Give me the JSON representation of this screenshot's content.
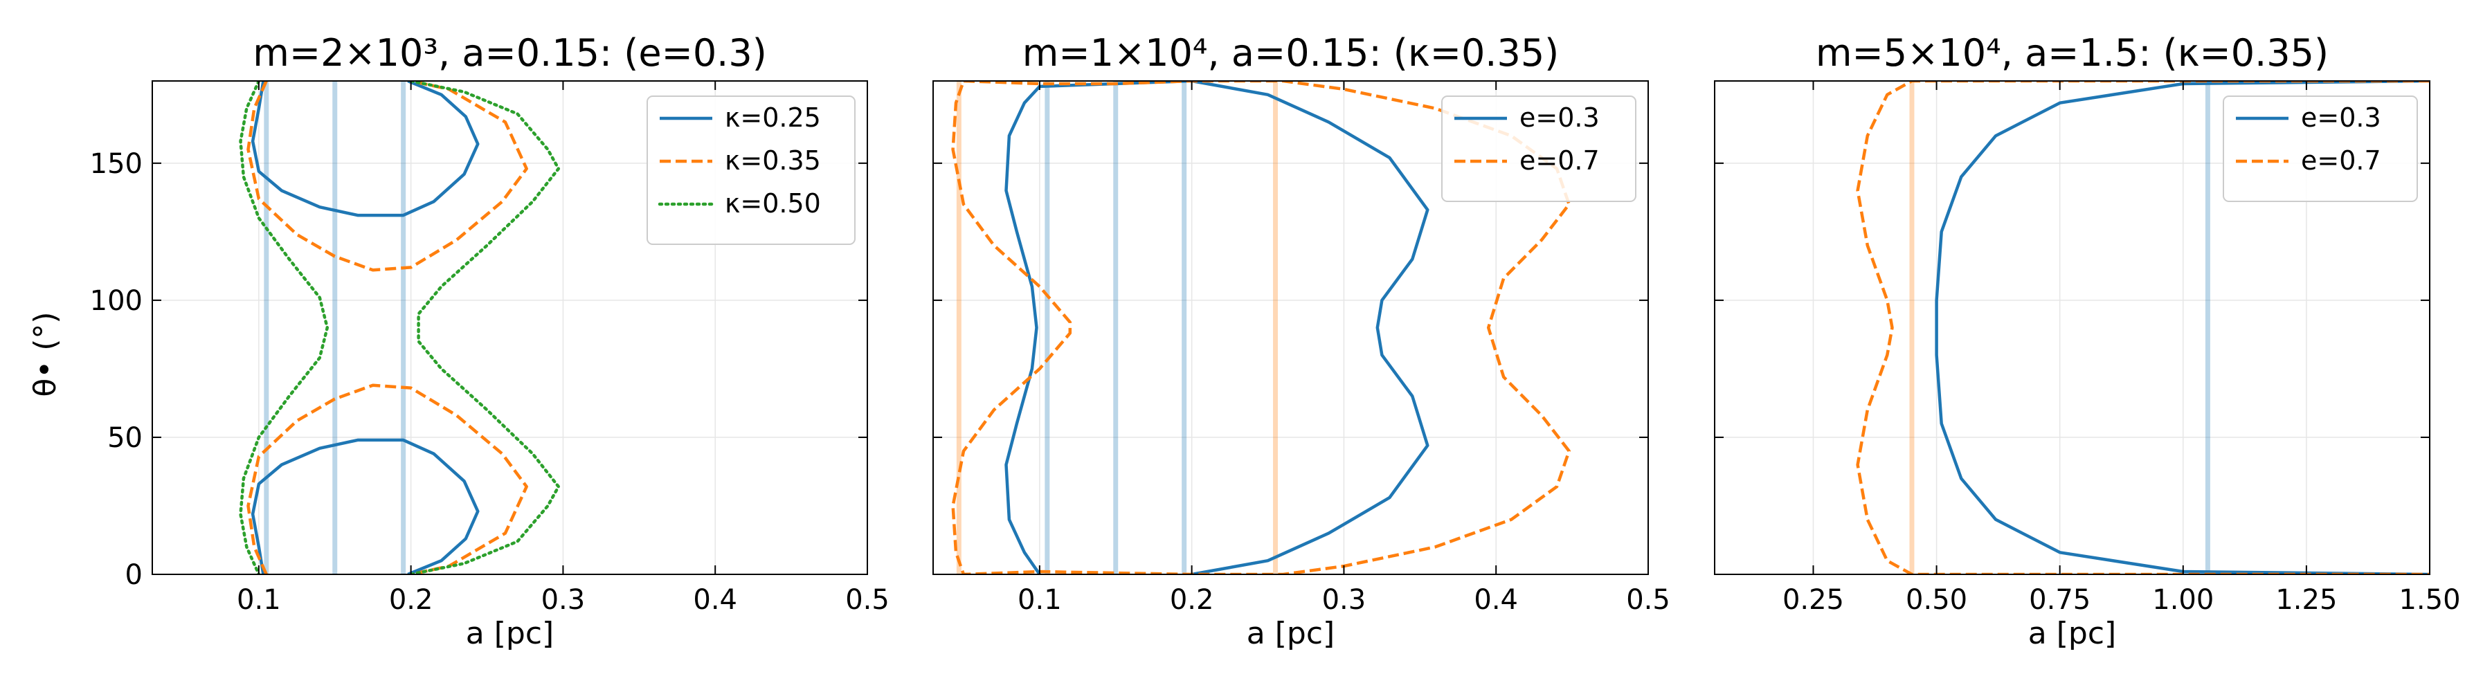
{
  "figure": {
    "ylabel": "θ• (°)"
  },
  "chart_data": [
    {
      "type": "line",
      "title": "m=2×10³, a=0.15: (e=0.3)",
      "xlabel": "a [pc]",
      "ylabel": "θ• (°)",
      "xlim": [
        0.03,
        0.5
      ],
      "ylim": [
        0,
        180
      ],
      "xticks": [
        0.1,
        0.2,
        0.3,
        0.4,
        0.5
      ],
      "xtick_labels": [
        "0.1",
        "0.2",
        "0.3",
        "0.4",
        "0.5"
      ],
      "yticks": [
        0,
        50,
        100,
        150
      ],
      "ytick_labels": [
        "0",
        "50",
        "100",
        "150"
      ],
      "show_ytick_labels": true,
      "grid": true,
      "legend_position": "top-right",
      "vlines": [
        {
          "x": 0.105,
          "color": "#1f77b4"
        },
        {
          "x": 0.15,
          "color": "#1f77b4"
        },
        {
          "x": 0.195,
          "color": "#1f77b4"
        }
      ],
      "series": [
        {
          "name": "κ=0.25",
          "color": "#1f77b4",
          "dash": "solid",
          "segments": [
            [
              [
                0.103,
                180
              ],
              [
                0.1,
                170
              ],
              [
                0.096,
                158
              ],
              [
                0.1,
                147
              ],
              [
                0.115,
                140
              ],
              [
                0.14,
                134
              ],
              [
                0.165,
                131
              ],
              [
                0.195,
                131
              ],
              [
                0.215,
                136
              ],
              [
                0.235,
                146
              ],
              [
                0.244,
                157
              ],
              [
                0.236,
                167
              ],
              [
                0.22,
                175
              ],
              [
                0.198,
                180
              ]
            ],
            [
              [
                0.103,
                0
              ],
              [
                0.1,
                10
              ],
              [
                0.096,
                22
              ],
              [
                0.1,
                33
              ],
              [
                0.115,
                40
              ],
              [
                0.14,
                46
              ],
              [
                0.165,
                49
              ],
              [
                0.195,
                49
              ],
              [
                0.215,
                44
              ],
              [
                0.235,
                34
              ],
              [
                0.244,
                23
              ],
              [
                0.236,
                13
              ],
              [
                0.22,
                5
              ],
              [
                0.198,
                0
              ]
            ]
          ]
        },
        {
          "name": "κ=0.35",
          "color": "#ff7f0e",
          "dash": "dashed",
          "segments": [
            [
              [
                0.105,
                180
              ],
              [
                0.097,
                170
              ],
              [
                0.093,
                155
              ],
              [
                0.1,
                137
              ],
              [
                0.125,
                124
              ],
              [
                0.15,
                116
              ],
              [
                0.175,
                111
              ],
              [
                0.2,
                112
              ],
              [
                0.23,
                122
              ],
              [
                0.26,
                136
              ],
              [
                0.276,
                148
              ],
              [
                0.262,
                165
              ],
              [
                0.225,
                177
              ],
              [
                0.2,
                180
              ]
            ],
            [
              [
                0.105,
                0
              ],
              [
                0.097,
                10
              ],
              [
                0.093,
                25
              ],
              [
                0.1,
                43
              ],
              [
                0.125,
                56
              ],
              [
                0.15,
                64
              ],
              [
                0.175,
                69
              ],
              [
                0.2,
                68
              ],
              [
                0.23,
                58
              ],
              [
                0.26,
                44
              ],
              [
                0.276,
                32
              ],
              [
                0.262,
                15
              ],
              [
                0.225,
                3
              ],
              [
                0.2,
                0
              ]
            ]
          ]
        },
        {
          "name": "κ=0.50",
          "color": "#2ca02c",
          "dash": "dotted",
          "segments": [
            [
              [
                0.1,
                180
              ],
              [
                0.092,
                170
              ],
              [
                0.088,
                158
              ],
              [
                0.09,
                145
              ],
              [
                0.1,
                130
              ],
              [
                0.12,
                115
              ],
              [
                0.14,
                101
              ],
              [
                0.145,
                90
              ],
              [
                0.14,
                79
              ],
              [
                0.12,
                65
              ],
              [
                0.1,
                50
              ],
              [
                0.09,
                35
              ],
              [
                0.088,
                22
              ],
              [
                0.092,
                10
              ],
              [
                0.1,
                0
              ]
            ],
            [
              [
                0.2,
                180
              ],
              [
                0.235,
                176
              ],
              [
                0.27,
                168
              ],
              [
                0.29,
                155
              ],
              [
                0.297,
                148
              ],
              [
                0.28,
                136
              ],
              [
                0.25,
                120
              ],
              [
                0.22,
                105
              ],
              [
                0.205,
                95
              ],
              [
                0.205,
                85
              ],
              [
                0.22,
                75
              ],
              [
                0.25,
                60
              ],
              [
                0.28,
                44
              ],
              [
                0.297,
                32
              ],
              [
                0.29,
                25
              ],
              [
                0.27,
                12
              ],
              [
                0.235,
                4
              ],
              [
                0.2,
                0
              ]
            ]
          ]
        }
      ]
    },
    {
      "type": "line",
      "title": "m=1×10⁴, a=0.15: (κ=0.35)",
      "xlabel": "a [pc]",
      "ylabel": "",
      "xlim": [
        0.03,
        0.5
      ],
      "ylim": [
        0,
        180
      ],
      "xticks": [
        0.1,
        0.2,
        0.3,
        0.4,
        0.5
      ],
      "xtick_labels": [
        "0.1",
        "0.2",
        "0.3",
        "0.4",
        "0.5"
      ],
      "yticks": [
        0,
        50,
        100,
        150
      ],
      "ytick_labels": [
        "0",
        "50",
        "100",
        "150"
      ],
      "show_ytick_labels": false,
      "grid": true,
      "legend_position": "top-right",
      "vlines": [
        {
          "x": 0.047,
          "color": "#ff7f0e"
        },
        {
          "x": 0.105,
          "color": "#1f77b4"
        },
        {
          "x": 0.15,
          "color": "#1f77b4"
        },
        {
          "x": 0.195,
          "color": "#1f77b4"
        },
        {
          "x": 0.255,
          "color": "#ff7f0e"
        }
      ],
      "series": [
        {
          "name": "e=0.3",
          "color": "#1f77b4",
          "dash": "solid",
          "segments": [
            [
              [
                0.1,
                0
              ],
              [
                0.09,
                8
              ],
              [
                0.08,
                20
              ],
              [
                0.078,
                40
              ],
              [
                0.085,
                55
              ],
              [
                0.095,
                75
              ],
              [
                0.098,
                90
              ],
              [
                0.095,
                105
              ],
              [
                0.085,
                125
              ],
              [
                0.078,
                140
              ],
              [
                0.08,
                160
              ],
              [
                0.09,
                172
              ],
              [
                0.1,
                178
              ],
              [
                0.2,
                180
              ],
              [
                0.25,
                175
              ],
              [
                0.29,
                165
              ],
              [
                0.33,
                152
              ],
              [
                0.355,
                133
              ],
              [
                0.345,
                115
              ],
              [
                0.325,
                100
              ],
              [
                0.322,
                90
              ],
              [
                0.325,
                80
              ],
              [
                0.345,
                65
              ],
              [
                0.355,
                47
              ],
              [
                0.33,
                28
              ],
              [
                0.29,
                15
              ],
              [
                0.25,
                5
              ],
              [
                0.2,
                0
              ]
            ]
          ]
        },
        {
          "name": "e=0.7",
          "color": "#ff7f0e",
          "dash": "dashed",
          "segments": [
            [
              [
                0.05,
                180
              ],
              [
                0.1,
                179
              ],
              [
                0.15,
                179
              ],
              [
                0.2,
                180
              ],
              [
                0.26,
                180
              ],
              [
                0.3,
                177
              ],
              [
                0.36,
                170
              ],
              [
                0.41,
                160
              ],
              [
                0.44,
                148
              ],
              [
                0.448,
                135
              ],
              [
                0.43,
                122
              ],
              [
                0.405,
                108
              ],
              [
                0.395,
                90
              ],
              [
                0.405,
                72
              ],
              [
                0.43,
                58
              ],
              [
                0.448,
                45
              ],
              [
                0.44,
                32
              ],
              [
                0.41,
                20
              ],
              [
                0.36,
                10
              ],
              [
                0.3,
                3
              ],
              [
                0.26,
                0
              ],
              [
                0.2,
                0
              ],
              [
                0.15,
                0.5
              ],
              [
                0.1,
                1
              ],
              [
                0.05,
                0
              ],
              [
                0.045,
                8
              ],
              [
                0.043,
                25
              ],
              [
                0.05,
                45
              ],
              [
                0.07,
                60
              ],
              [
                0.1,
                75
              ],
              [
                0.12,
                88
              ],
              [
                0.12,
                92
              ],
              [
                0.1,
                105
              ],
              [
                0.07,
                120
              ],
              [
                0.05,
                135
              ],
              [
                0.043,
                155
              ],
              [
                0.045,
                172
              ],
              [
                0.05,
                180
              ]
            ]
          ]
        }
      ]
    },
    {
      "type": "line",
      "title": "m=5×10⁴, a=1.5:  (κ=0.35)",
      "xlabel": "a [pc]",
      "ylabel": "",
      "xlim": [
        0.05,
        1.5
      ],
      "ylim": [
        0,
        180
      ],
      "xticks": [
        0.25,
        0.5,
        0.75,
        1.0,
        1.25,
        1.5
      ],
      "xtick_labels": [
        "0.25",
        "0.50",
        "0.75",
        "1.00",
        "1.25",
        "1.50"
      ],
      "yticks": [
        0,
        50,
        100,
        150
      ],
      "ytick_labels": [
        "0",
        "50",
        "100",
        "150"
      ],
      "show_ytick_labels": false,
      "grid": true,
      "legend_position": "top-right",
      "vlines": [
        {
          "x": 0.45,
          "color": "#ff7f0e"
        },
        {
          "x": 1.05,
          "color": "#1f77b4"
        }
      ],
      "series": [
        {
          "name": "e=0.3",
          "color": "#1f77b4",
          "dash": "solid",
          "segments": [
            [
              [
                1.5,
                180
              ],
              [
                1.0,
                179
              ],
              [
                0.75,
                172
              ],
              [
                0.62,
                160
              ],
              [
                0.55,
                145
              ],
              [
                0.51,
                125
              ],
              [
                0.5,
                100
              ],
              [
                0.5,
                80
              ],
              [
                0.51,
                55
              ],
              [
                0.55,
                35
              ],
              [
                0.62,
                20
              ],
              [
                0.75,
                8
              ],
              [
                1.0,
                1
              ],
              [
                1.5,
                0
              ]
            ]
          ]
        },
        {
          "name": "e=0.7",
          "color": "#ff7f0e",
          "dash": "dashed",
          "segments": [
            [
              [
                1.5,
                180
              ],
              [
                0.45,
                180
              ],
              [
                0.4,
                175
              ],
              [
                0.36,
                160
              ],
              [
                0.34,
                140
              ],
              [
                0.36,
                120
              ],
              [
                0.4,
                100
              ],
              [
                0.41,
                90
              ],
              [
                0.4,
                80
              ],
              [
                0.36,
                60
              ],
              [
                0.34,
                40
              ],
              [
                0.36,
                20
              ],
              [
                0.4,
                5
              ],
              [
                0.45,
                0
              ],
              [
                1.5,
                0
              ]
            ]
          ]
        }
      ]
    }
  ]
}
